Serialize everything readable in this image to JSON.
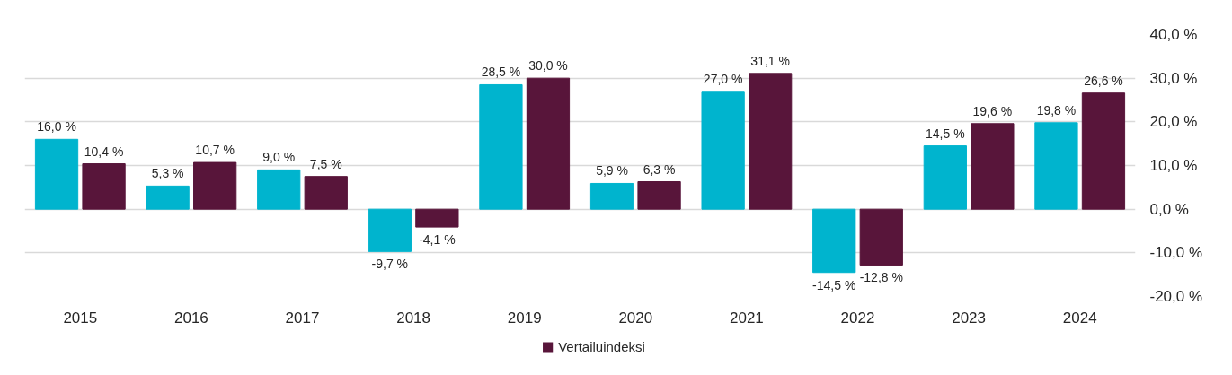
{
  "chart_data": {
    "type": "bar",
    "categories": [
      "2015",
      "2016",
      "2017",
      "2018",
      "2019",
      "2020",
      "2021",
      "2022",
      "2023",
      "2024"
    ],
    "series": [
      {
        "color": "#00b4ce",
        "values": [
          16.0,
          5.3,
          9.0,
          -9.7,
          28.5,
          5.9,
          27.0,
          -14.5,
          14.5,
          19.8
        ],
        "value_labels": [
          "16,0 %",
          "5,3 %",
          "9,0 %",
          "-9,7 %",
          "28,5 %",
          "5,9 %",
          "27,0 %",
          "-14,5 %",
          "14,5 %",
          "19,8 %"
        ]
      },
      {
        "name": "Vertailuindeksi",
        "color": "#58153a",
        "values": [
          10.4,
          10.7,
          7.5,
          -4.1,
          30.0,
          6.3,
          31.1,
          -12.8,
          19.6,
          26.6
        ],
        "value_labels": [
          "10,4 %",
          "10,7 %",
          "7,5 %",
          "-4,1 %",
          "30,0 %",
          "6,3 %",
          "31,1 %",
          "-12,8 %",
          "19,6 %",
          "26,6 %"
        ]
      }
    ],
    "ylim": [
      -20,
      40
    ],
    "yticks": [
      {
        "value": -20,
        "label": "-20,0 %"
      },
      {
        "value": -10,
        "label": "-10,0 %"
      },
      {
        "value": 0,
        "label": "0,0 %"
      },
      {
        "value": 10,
        "label": "10,0 %"
      },
      {
        "value": 20,
        "label": "20,0 %"
      },
      {
        "value": 30,
        "label": "30,0 %"
      },
      {
        "value": 40,
        "label": "40,0 %"
      }
    ],
    "grid": "y",
    "legend": "bottom"
  }
}
